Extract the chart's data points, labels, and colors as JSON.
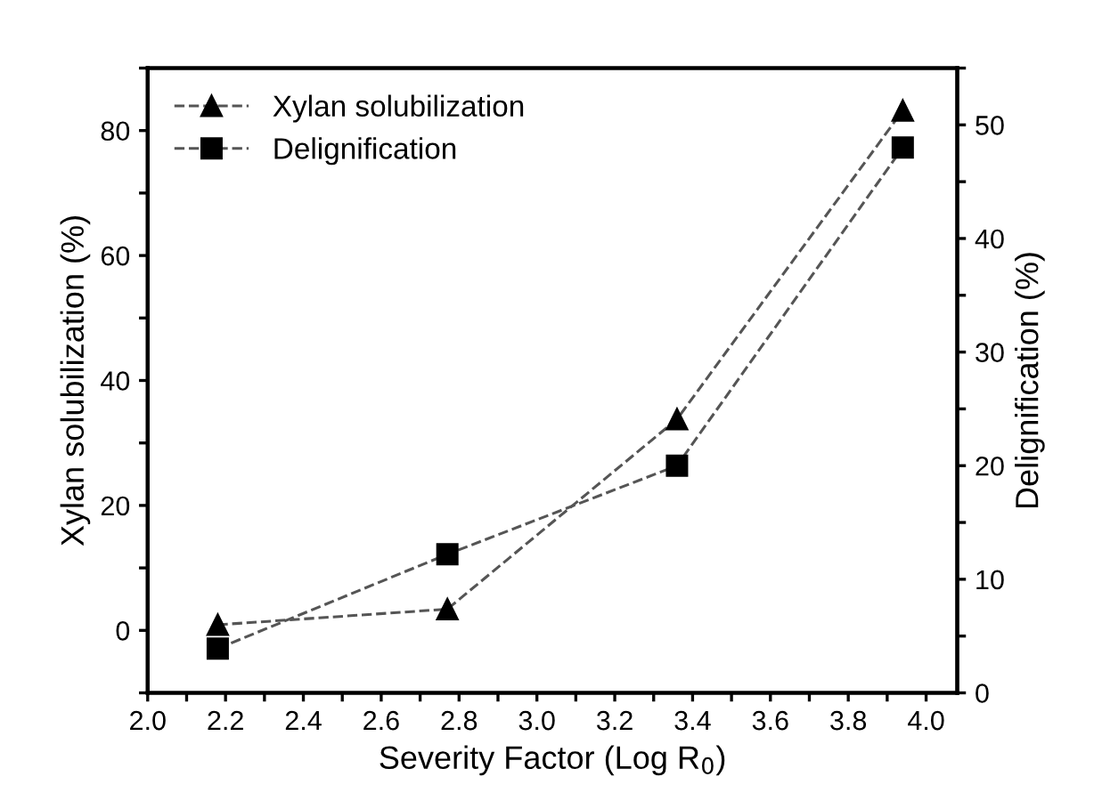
{
  "chart_data": {
    "type": "line",
    "xlabel": "Severity Factor (Log R$_{0}$)",
    "ylabel": "Xylan solubilization (%)",
    "y2label": "Delignification (%)",
    "x": [
      2.18,
      2.77,
      3.36,
      3.94
    ],
    "series": [
      {
        "name": "Xylan solubilization",
        "color": "#000000",
        "values": [
          0.9,
          3.4,
          33.8,
          83.2
        ],
        "marker": "triangle"
      },
      {
        "name": "Delignification",
        "color": "#000000",
        "values": [
          3.9,
          12.2,
          20.0,
          48.0
        ],
        "marker": "square",
        "axis": "y2"
      }
    ],
    "line_style": "dashed",
    "legend": "top left",
    "grid": false,
    "xlim": [
      2.0,
      4.08
    ],
    "xticks": [
      {
        "value": 2.0,
        "label": "2.0"
      },
      {
        "value": 2.1,
        "label": null
      },
      2.2,
      {
        "value": 2.3,
        "label": null
      },
      2.4,
      {
        "value": 2.5,
        "label": null
      },
      2.6,
      {
        "value": 2.7,
        "label": null
      },
      2.8,
      {
        "value": 2.9,
        "label": null
      },
      {
        "value": 3.0,
        "label": "3.0"
      },
      {
        "value": 3.1,
        "label": null
      },
      3.2,
      {
        "value": 3.3,
        "label": null
      },
      3.4,
      {
        "value": 3.5,
        "label": null
      },
      3.6,
      {
        "value": 3.7,
        "label": null
      },
      3.8,
      {
        "value": 3.9,
        "label": null
      },
      {
        "value": 4.0,
        "label": "4.0"
      }
    ],
    "ylim": [
      -10,
      90
    ],
    "yticks": [
      {
        "value": -10,
        "label": null
      },
      0,
      {
        "value": 10,
        "label": null
      },
      20,
      {
        "value": 30,
        "label": null
      },
      40,
      {
        "value": 50,
        "label": null
      },
      60,
      {
        "value": 70,
        "label": null
      },
      80,
      {
        "value": 90,
        "label": null
      }
    ],
    "y2lim": [
      0,
      55
    ],
    "y2ticks": [
      0,
      {
        "value": 5,
        "label": null
      },
      10,
      {
        "value": 15,
        "label": null
      },
      20,
      {
        "value": 25,
        "label": null
      },
      30,
      {
        "value": 35,
        "label": null
      },
      40,
      {
        "value": 45,
        "label": null
      },
      50,
      {
        "value": 55,
        "label": null
      }
    ]
  }
}
